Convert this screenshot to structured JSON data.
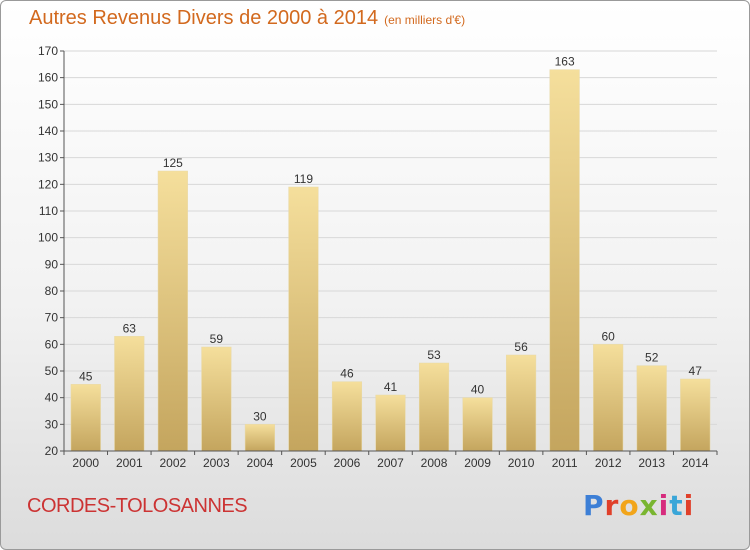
{
  "header": {
    "title": "Autres Revenus Divers de 2000 à 2014",
    "subtitle": "(en milliers d'€)"
  },
  "footer": {
    "city": "CORDES-TOLOSANNES",
    "brand": "Proxiti",
    "brand_colors": [
      "#3d7fd6",
      "#e0402a",
      "#f2a51a",
      "#79b530",
      "#d62b7d",
      "#3aa6d8",
      "#e0402a"
    ]
  },
  "colors": {
    "title": "#d2691e",
    "city": "#cc3333",
    "bar_light": "#f5df9c",
    "bar_dark": "#c4a55e",
    "grid": "#d8d8d8",
    "axis": "#555555"
  },
  "chart_data": {
    "type": "bar",
    "title": "Autres Revenus Divers de 2000 à 2014",
    "subtitle": "(en milliers d'€)",
    "categories": [
      "2000",
      "2001",
      "2002",
      "2003",
      "2004",
      "2005",
      "2006",
      "2007",
      "2008",
      "2009",
      "2010",
      "2011",
      "2012",
      "2013",
      "2014"
    ],
    "values": [
      45,
      63,
      125,
      59,
      30,
      119,
      46,
      41,
      53,
      40,
      56,
      163,
      60,
      52,
      47
    ],
    "ylim": [
      20,
      170
    ],
    "yticks": [
      20,
      30,
      40,
      50,
      60,
      70,
      80,
      90,
      100,
      110,
      120,
      130,
      140,
      150,
      160,
      170
    ],
    "grid": true,
    "xlabel": "",
    "ylabel": ""
  }
}
